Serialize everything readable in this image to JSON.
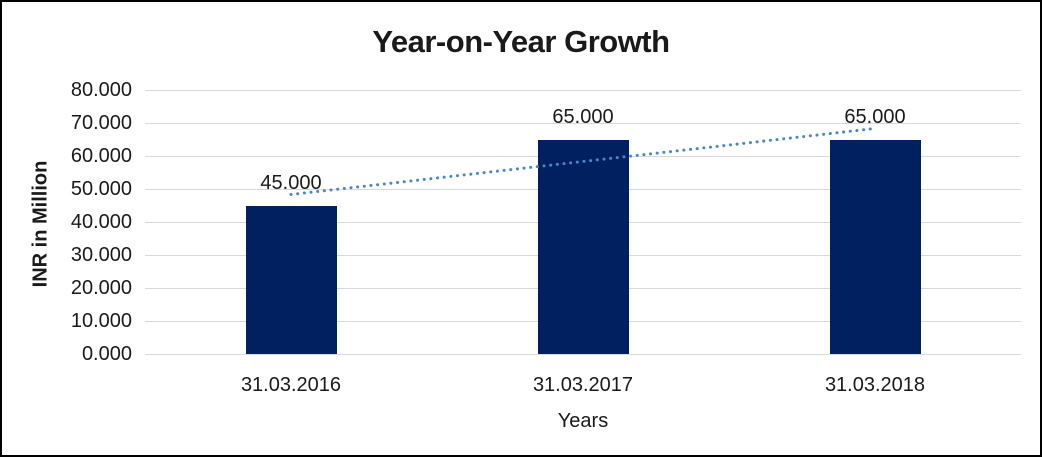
{
  "chart_data": {
    "type": "bar",
    "title": "Year-on-Year Growth",
    "categories": [
      "31.03.2016",
      "31.03.2017",
      "31.03.2018"
    ],
    "values": [
      45,
      65,
      65
    ],
    "data_labels": [
      "45.000",
      "65.000",
      "65.000"
    ],
    "xlabel": "Years",
    "ylabel": "INR in Million",
    "y_ticks": [
      "80.000",
      "70.000",
      "60.000",
      "50.000",
      "40.000",
      "30.000",
      "20.000",
      "10.000",
      "0.000"
    ],
    "ylim": [
      0,
      80
    ],
    "grid": "horizontal",
    "legend": "none",
    "bar_color": "#002060",
    "gridline_color": "#d9d9d9",
    "trendline": {
      "type": "linear",
      "style": "dotted",
      "color": "#4a86c9"
    }
  }
}
